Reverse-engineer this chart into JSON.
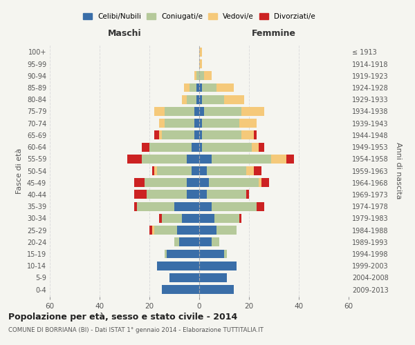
{
  "age_groups": [
    "0-4",
    "5-9",
    "10-14",
    "15-19",
    "20-24",
    "25-29",
    "30-34",
    "35-39",
    "40-44",
    "45-49",
    "50-54",
    "55-59",
    "60-64",
    "65-69",
    "70-74",
    "75-79",
    "80-84",
    "85-89",
    "90-94",
    "95-99",
    "100+"
  ],
  "birth_years": [
    "2009-2013",
    "2004-2008",
    "1999-2003",
    "1994-1998",
    "1989-1993",
    "1984-1988",
    "1979-1983",
    "1974-1978",
    "1969-1973",
    "1964-1968",
    "1959-1963",
    "1954-1958",
    "1949-1953",
    "1944-1948",
    "1939-1943",
    "1934-1938",
    "1929-1933",
    "1924-1928",
    "1919-1923",
    "1914-1918",
    "≤ 1913"
  ],
  "colors": {
    "celibe": "#3a6ea8",
    "coniugato": "#b5c99a",
    "vedovo": "#f5c97a",
    "divorziato": "#cc2222"
  },
  "maschi": {
    "celibe": [
      15,
      12,
      17,
      13,
      8,
      9,
      7,
      10,
      5,
      5,
      3,
      5,
      3,
      2,
      2,
      2,
      1,
      1,
      0,
      0,
      0
    ],
    "coniugato": [
      0,
      0,
      0,
      1,
      2,
      9,
      8,
      15,
      16,
      17,
      14,
      18,
      17,
      13,
      12,
      12,
      4,
      3,
      1,
      0,
      0
    ],
    "vedovo": [
      0,
      0,
      0,
      0,
      0,
      1,
      0,
      0,
      0,
      0,
      1,
      0,
      0,
      1,
      2,
      4,
      2,
      2,
      1,
      0,
      0
    ],
    "divorziato": [
      0,
      0,
      0,
      0,
      0,
      1,
      1,
      1,
      5,
      4,
      1,
      6,
      3,
      2,
      0,
      0,
      0,
      0,
      0,
      0,
      0
    ]
  },
  "femmine": {
    "celibe": [
      14,
      11,
      15,
      10,
      5,
      7,
      6,
      5,
      3,
      4,
      3,
      5,
      1,
      1,
      1,
      2,
      1,
      1,
      0,
      0,
      0
    ],
    "coniugato": [
      0,
      0,
      0,
      1,
      3,
      8,
      10,
      18,
      16,
      20,
      16,
      24,
      20,
      16,
      15,
      15,
      9,
      6,
      2,
      0,
      0
    ],
    "vedovo": [
      0,
      0,
      0,
      0,
      0,
      0,
      0,
      0,
      0,
      1,
      3,
      6,
      3,
      5,
      7,
      9,
      8,
      7,
      3,
      1,
      1
    ],
    "divorziato": [
      0,
      0,
      0,
      0,
      0,
      0,
      1,
      3,
      1,
      3,
      3,
      3,
      2,
      1,
      0,
      0,
      0,
      0,
      0,
      0,
      0
    ]
  },
  "title": "Popolazione per età, sesso e stato civile - 2014",
  "subtitle": "COMUNE DI BORRIANA (BI) - Dati ISTAT 1° gennaio 2014 - Elaborazione TUTTITALIA.IT",
  "xlabel_left": "Maschi",
  "xlabel_right": "Femmine",
  "ylabel_left": "Fasce di età",
  "ylabel_right": "Anni di nascita",
  "legend_labels": [
    "Celibi/Nubili",
    "Coniugati/e",
    "Vedovi/e",
    "Divorziati/e"
  ],
  "xlim": 60,
  "background_color": "#f5f5f0",
  "grid_color": "#dddddd"
}
